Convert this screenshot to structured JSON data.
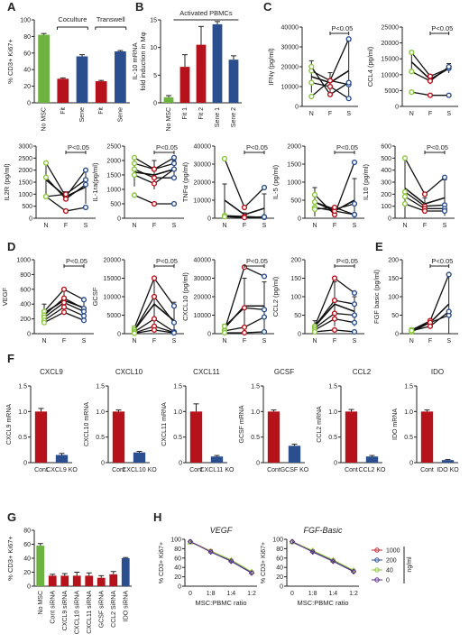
{
  "colors": {
    "green": "#6cb33f",
    "red": "#b5121b",
    "blue": "#2b4f8e",
    "ltgreen": "#8cc63f",
    "axis": "#222222"
  },
  "chart_data": [
    {
      "letter": "A",
      "type": "bar",
      "ylabel": "% CD3+ Ki67+",
      "ylim": [
        0,
        100
      ],
      "yticks": [
        0,
        20,
        40,
        60,
        80,
        100
      ],
      "categories": [
        "No MSC",
        "Fit",
        "Sene",
        "Fit",
        "Sene"
      ],
      "values": [
        82,
        29,
        56,
        26,
        62
      ],
      "errors": [
        1.5,
        1,
        2,
        1,
        1
      ],
      "bar_colors": [
        "green",
        "red",
        "blue",
        "red",
        "blue"
      ],
      "groups": [
        {
          "label": "Coculture",
          "from": 1,
          "to": 2
        },
        {
          "label": "Transwell",
          "from": 3,
          "to": 4
        }
      ]
    },
    {
      "letter": "B",
      "type": "bar",
      "title": "Activated PBMCs",
      "ylabel": "IL-10 mRNA fold induction in Mφ",
      "ylim": [
        0,
        15
      ],
      "yticks": [
        0,
        5,
        10,
        15
      ],
      "categories": [
        "No MSC",
        "Fit 1",
        "Fit 2",
        "Sene 1",
        "Sene 2"
      ],
      "values": [
        1,
        6.5,
        10.5,
        14.2,
        7.8
      ],
      "errors": [
        0.3,
        2.2,
        3.3,
        0.5,
        0.7
      ],
      "bar_colors": [
        "green",
        "red",
        "red",
        "blue",
        "blue"
      ]
    },
    {
      "letter": "C",
      "type": "line",
      "x": [
        "N",
        "F",
        "S"
      ],
      "sig": "P<0.05",
      "panels": [
        {
          "ylabel": "IFNγ (pg/ml)",
          "ylim": [
            0,
            40000
          ],
          "yticks": [
            0,
            10000,
            20000,
            30000,
            40000
          ],
          "mean": [
            15000,
            12000,
            18000
          ],
          "mean_err": [
            8000,
            5000,
            15000
          ],
          "series": [
            [
              5000,
              13000,
              34000
            ],
            [
              18000,
              13000,
              11000
            ],
            [
              20000,
              6000,
              12000
            ],
            [
              12000,
              10000,
              4000
            ]
          ]
        },
        {
          "ylabel": "CCL4 (pg/ml)",
          "ylim": [
            0,
            25000
          ],
          "yticks": [
            0,
            5000,
            10000,
            15000,
            20000,
            25000
          ],
          "mean": [
            14000,
            8500,
            12000
          ],
          "mean_err": [
            3500,
            1500,
            1500
          ],
          "series": [
            [
              4500,
              3500,
              3500
            ],
            [
              17000,
              9500,
              12000
            ],
            [
              11000,
              8000,
              12500
            ]
          ]
        },
        {
          "ylabel": "IL2R (pg/ml)",
          "ylim": [
            0,
            3000
          ],
          "yticks": [
            0,
            500,
            1000,
            1500,
            2000,
            2500,
            3000
          ],
          "mean": [
            1600,
            900,
            1300
          ],
          "mean_err": [
            700,
            200,
            700
          ],
          "series": [
            [
              2300,
              900,
              2000
            ],
            [
              1700,
              800,
              1400
            ],
            [
              900,
              300,
              450
            ],
            [
              900,
              1000,
              1600
            ]
          ]
        },
        {
          "ylabel": "IL-1ra(pg/ml)",
          "ylim": [
            0,
            2500
          ],
          "yticks": [
            0,
            500,
            1000,
            1500,
            2000,
            2500
          ],
          "mean": [
            1600,
            1500,
            1700
          ],
          "mean_err": [
            500,
            500,
            300
          ],
          "series": [
            [
              2100,
              1700,
              2100
            ],
            [
              1900,
              1700,
              1900
            ],
            [
              1700,
              1400,
              1400
            ],
            [
              1500,
              1200,
              1700
            ],
            [
              800,
              500,
              500
            ]
          ]
        },
        {
          "ylabel": "TNFα (pg/ml)",
          "ylim": [
            0,
            40000
          ],
          "yticks": [
            0,
            10000,
            20000,
            30000,
            40000
          ],
          "mean": [
            10000,
            2000,
            5500
          ],
          "mean_err": [
            9000,
            1000,
            8000
          ],
          "series": [
            [
              33000,
              6000,
              17000
            ],
            [
              1500,
              1000,
              500
            ],
            [
              1000,
              500,
              800
            ],
            [
              900,
              400,
              700
            ]
          ]
        },
        {
          "ylabel": "IL-5 (pg/ml)",
          "ylim": [
            0,
            2000
          ],
          "yticks": [
            0,
            500,
            1000,
            1500,
            2000
          ],
          "mean": [
            450,
            200,
            500
          ],
          "mean_err": [
            400,
            100,
            600
          ],
          "series": [
            [
              650,
              100,
              1550
            ],
            [
              450,
              250,
              400
            ],
            [
              300,
              200,
              100
            ],
            [
              250,
              300,
              100
            ]
          ]
        },
        {
          "ylabel": "IL10 (pg/ml)",
          "ylim": [
            0,
            600
          ],
          "yticks": [
            0,
            100,
            200,
            300,
            400,
            500,
            600
          ],
          "mean": [
            250,
            120,
            170
          ],
          "mean_err": [
            250,
            50,
            150
          ],
          "series": [
            [
              500,
              200,
              340
            ],
            [
              220,
              100,
              110
            ],
            [
              180,
              80,
              80
            ],
            [
              120,
              60,
              60
            ]
          ]
        }
      ]
    },
    {
      "letter": "D",
      "type": "line",
      "x": [
        "N",
        "F",
        "S"
      ],
      "sig": "P<0.05",
      "panels": [
        {
          "ylabel": "VEGF",
          "ylim": [
            0,
            1000
          ],
          "yticks": [
            0,
            200,
            400,
            600,
            800,
            1000
          ],
          "mean": [
            280,
            450,
            350
          ],
          "mean_err": [
            120,
            150,
            120
          ],
          "series": [
            [
              300,
              600,
              460
            ],
            [
              250,
              480,
              340
            ],
            [
              220,
              420,
              300
            ],
            [
              180,
              360,
              240
            ],
            [
              150,
              290,
              180
            ]
          ]
        },
        {
          "ylabel": "GCSF",
          "ylim": [
            0,
            20000
          ],
          "yticks": [
            0,
            5000,
            10000,
            15000,
            20000
          ],
          "mean": [
            1000,
            8000,
            3500
          ],
          "mean_err": [
            1000,
            7000,
            5000
          ],
          "series": [
            [
              1500,
              15000,
              7500
            ],
            [
              1000,
              10000,
              3000
            ],
            [
              500,
              4000,
              500
            ],
            [
              200,
              2000,
              300
            ],
            [
              100,
              1000,
              200
            ]
          ]
        },
        {
          "ylabel": "CXCL10 (pg/ml)",
          "ylim": [
            0,
            40000
          ],
          "yticks": [
            0,
            10000,
            20000,
            30000,
            40000
          ],
          "mean": [
            3000,
            15000,
            15000
          ],
          "mean_err": [
            2000,
            15000,
            13000
          ],
          "series": [
            [
              2000,
              36000,
              31000
            ],
            [
              4000,
              14000,
              13000
            ],
            [
              1500,
              3500,
              9000
            ],
            [
              500,
              500,
              1000
            ]
          ]
        },
        {
          "ylabel": "CCL2 (pg/ml)",
          "ylim": [
            0,
            200
          ],
          "yticks": [
            0,
            50,
            100,
            150,
            200
          ],
          "mean": [
            20,
            80,
            60
          ],
          "mean_err": [
            15,
            60,
            40
          ],
          "series": [
            [
              20,
              150,
              110
            ],
            [
              20,
              90,
              80
            ],
            [
              15,
              55,
              50
            ],
            [
              10,
              40,
              30
            ],
            [
              5,
              10,
              5
            ]
          ]
        }
      ]
    },
    {
      "letter": "E",
      "type": "line",
      "x": [
        "N",
        "F",
        "S"
      ],
      "sig": "P<0.05",
      "panels": [
        {
          "ylabel": "FGF basic (pg/ml)",
          "ylim": [
            0,
            200
          ],
          "yticks": [
            0,
            50,
            100,
            150,
            200
          ],
          "mean": [
            10,
            30,
            80
          ],
          "mean_err": [
            5,
            10,
            80
          ],
          "series": [
            [
              10,
              35,
              160
            ],
            [
              5,
              30,
              50
            ],
            [
              8,
              20,
              60
            ]
          ]
        }
      ]
    },
    {
      "letter": "F",
      "type": "bar",
      "panels": [
        {
          "title": "CXCL9",
          "ylabel": "CXCL9 mRNA",
          "categories": [
            "Cont",
            "CXCL9 KO"
          ],
          "values": [
            1.0,
            0.15
          ],
          "errors": [
            0.06,
            0.03
          ]
        },
        {
          "title": "CXCL10",
          "ylabel": "CXCL10 mRNA",
          "categories": [
            "Cont",
            "CXCL10 KO"
          ],
          "values": [
            1.0,
            0.2
          ],
          "errors": [
            0.03,
            0.02
          ]
        },
        {
          "title": "CXCL11",
          "ylabel": "CXCL11 mRNA",
          "categories": [
            "Cont",
            "CXCL11 KO"
          ],
          "values": [
            1.0,
            0.12
          ],
          "errors": [
            0.15,
            0.02
          ]
        },
        {
          "title": "GCSF",
          "ylabel": "GCSF mRNA",
          "categories": [
            "Cont",
            "GCSF KO"
          ],
          "values": [
            1.0,
            0.33
          ],
          "errors": [
            0.03,
            0.03
          ]
        },
        {
          "title": "CCL2",
          "ylabel": "CCL2 mRNA",
          "categories": [
            "Cont",
            "CCL2 KO"
          ],
          "values": [
            1.0,
            0.12
          ],
          "errors": [
            0.04,
            0.02
          ]
        },
        {
          "title": "IDO",
          "ylabel": "IDO mRNA",
          "categories": [
            "Cont",
            "IDO KO"
          ],
          "values": [
            1.0,
            0.05
          ],
          "errors": [
            0.03,
            0.01
          ]
        }
      ],
      "ylim": [
        0,
        1.5
      ],
      "yticks": [
        0,
        0.5,
        1.0,
        1.5
      ],
      "ytick_labels": [
        "0",
        "0.5",
        "1.0",
        "1.5"
      ]
    },
    {
      "letter": "G",
      "type": "bar",
      "ylabel": "% CD3+ Ki67+",
      "ylim": [
        0,
        80
      ],
      "yticks": [
        0,
        20,
        40,
        60,
        80
      ],
      "categories": [
        "No MSC",
        "Cont siRNA",
        "CXCL9 siRNA",
        "CXCL10 siRNA",
        "CXCL11 siRNA",
        "GCSF siRNA",
        "CCL2 SiRNA",
        "IDO siRNA"
      ],
      "values": [
        58,
        15,
        15,
        15,
        15,
        12,
        17,
        40
      ],
      "errors": [
        3,
        2,
        3,
        5,
        4,
        3,
        4,
        1
      ],
      "bar_colors": [
        "green",
        "red",
        "red",
        "red",
        "red",
        "red",
        "red",
        "blue"
      ]
    },
    {
      "letter": "H",
      "type": "line",
      "xlabel": "MSC:PBMC ratio",
      "ylabel": "% CD3+ Ki67+",
      "x": [
        "0",
        "1:8",
        "1:4",
        "1:2"
      ],
      "ylim": [
        0,
        100
      ],
      "yticks": [
        0,
        20,
        40,
        60,
        80,
        100
      ],
      "legend_unit": "ng/ml",
      "legend": [
        "1000",
        "200",
        "40",
        "0"
      ],
      "legend_colors": [
        "#c0262d",
        "#2b4f8e",
        "#8cc63f",
        "#5b2c8a"
      ],
      "panels": [
        {
          "title": "VEGF",
          "series": [
            [
              95,
              75,
              55,
              30
            ],
            [
              95,
              74,
              54,
              29
            ],
            [
              94,
              75,
              56,
              31
            ],
            [
              95,
              73,
              53,
              28
            ]
          ]
        },
        {
          "title": "FGF-Basic",
          "series": [
            [
              95,
              75,
              55,
              33
            ],
            [
              94,
              74,
              54,
              32
            ],
            [
              95,
              76,
              56,
              34
            ],
            [
              95,
              73,
              53,
              31
            ]
          ]
        }
      ]
    }
  ]
}
